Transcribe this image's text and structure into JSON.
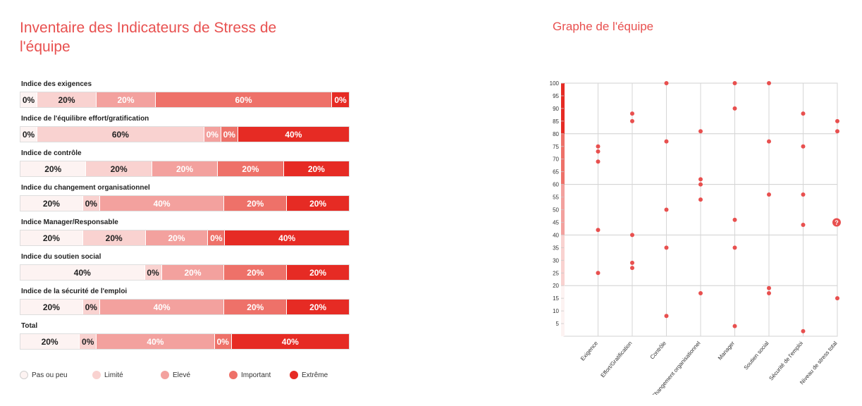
{
  "titles": {
    "left": "Inventaire des Indicateurs de Stress de l'équipe",
    "right": "Graphe de l'équipe"
  },
  "colors": {
    "levels": [
      "#fdf3f2",
      "#f9d2d0",
      "#f3a19e",
      "#ee7169",
      "#e62b24"
    ],
    "text_dark": "#222222",
    "text_light": "#ffffff",
    "accent": "#e8504f"
  },
  "chart_data": [
    {
      "type": "bar",
      "orientation": "horizontal-stacked",
      "title": "Inventaire des Indicateurs de Stress de l'équipe",
      "series_names": [
        "Pas ou peu",
        "Limité",
        "Elevé",
        "Important",
        "Extrême"
      ],
      "categories": [
        "Indice des exigences",
        "Indice de l'équilibre effort/gratification",
        "Indice de contrôle",
        "Indice du changement organisationnel",
        "Indice Manager/Responsable",
        "Indice du soutien social",
        "Indice de la sécurité de l'emploi",
        "Total"
      ],
      "values": [
        [
          0,
          20,
          20,
          60,
          0
        ],
        [
          0,
          60,
          0,
          0,
          40
        ],
        [
          20,
          20,
          20,
          20,
          20
        ],
        [
          20,
          0,
          40,
          20,
          20
        ],
        [
          20,
          20,
          20,
          0,
          40
        ],
        [
          40,
          0,
          20,
          20,
          20
        ],
        [
          20,
          0,
          40,
          20,
          20
        ],
        [
          20,
          0,
          40,
          0,
          40
        ]
      ],
      "unit": "%",
      "legend": [
        "Pas ou peu",
        "Limité",
        "Elevé",
        "Important",
        "Extrême"
      ],
      "legend_position": "bottom"
    },
    {
      "type": "scatter",
      "title": "Graphe de l'équipe",
      "categories": [
        "Exigence",
        "Effort/Gratification",
        "Contrôle",
        "Changement organisationnel",
        "Manager",
        "Soutien social",
        "Sécurité de l'emploi",
        "Niveau de stress total"
      ],
      "points": [
        [
          75,
          73,
          69,
          42,
          25
        ],
        [
          88,
          85,
          40,
          29,
          27
        ],
        [
          100,
          77,
          50,
          35,
          8
        ],
        [
          81,
          62,
          60,
          54,
          17
        ],
        [
          100,
          90,
          46,
          35,
          4
        ],
        [
          100,
          77,
          56,
          19,
          17
        ],
        [
          88,
          75,
          56,
          44,
          2
        ],
        [
          85,
          81,
          15
        ]
      ],
      "ylim": [
        0,
        100
      ],
      "yticks": [
        5,
        10,
        15,
        20,
        25,
        30,
        35,
        40,
        45,
        50,
        55,
        60,
        65,
        70,
        75,
        80,
        85,
        90,
        95,
        100
      ],
      "grid": true,
      "marker_badge": "?"
    }
  ]
}
